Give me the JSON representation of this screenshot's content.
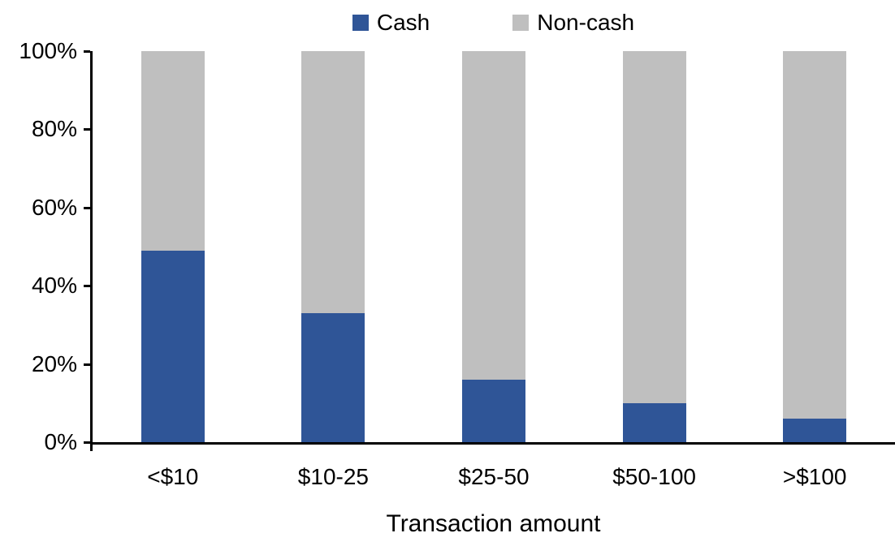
{
  "chart_data": {
    "type": "bar",
    "variant": "stacked-100-percent",
    "title": "",
    "xlabel": "Transaction amount",
    "ylabel": "",
    "categories": [
      "<$10",
      "$10-25",
      "$25-50",
      "$50-100",
      ">$100"
    ],
    "series": [
      {
        "name": "Cash",
        "color": "#2F5597",
        "values": [
          49,
          33,
          16,
          10,
          6
        ]
      },
      {
        "name": "Non-cash",
        "color": "#BFBFBF",
        "values": [
          51,
          67,
          84,
          90,
          94
        ]
      }
    ],
    "ylim": [
      0,
      100
    ],
    "yticks": [
      0,
      20,
      40,
      60,
      80,
      100
    ],
    "yticklabels": [
      "0%",
      "20%",
      "40%",
      "60%",
      "80%",
      "100%"
    ],
    "legend_position": "top",
    "grid": false,
    "axis_color": "#000000",
    "text_color": "#000000",
    "background_color": "#FFFFFF"
  }
}
